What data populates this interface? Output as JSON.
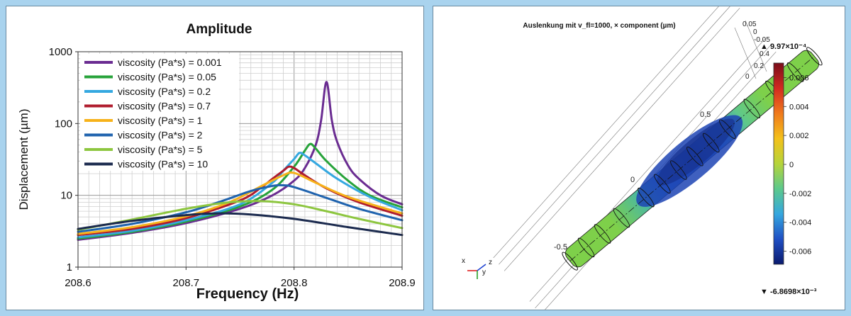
{
  "chart_data": [
    {
      "type": "line",
      "title": "Amplitude",
      "xlabel": "Frequency (Hz)",
      "ylabel": "Displacement (µm)",
      "x_scale": "linear",
      "y_scale": "log",
      "xlim": [
        208.6,
        208.9
      ],
      "ylim": [
        1,
        1000
      ],
      "grid": true,
      "legend_position": "top-left",
      "x_ticks": [
        "208.6",
        "208.7",
        "208.8",
        "208.9"
      ],
      "y_ticks": [
        "1",
        "10",
        "100",
        "1000"
      ],
      "series": [
        {
          "name": "viscosity (Pa*s) = 0.001",
          "color": "#6a2c91",
          "x": [
            208.6,
            208.65,
            208.7,
            208.75,
            208.78,
            208.8,
            208.81,
            208.82,
            208.825,
            208.83,
            208.835,
            208.84,
            208.85,
            208.86,
            208.88,
            208.9
          ],
          "y": [
            2.4,
            3.0,
            4.1,
            6.5,
            10.0,
            16.0,
            24.0,
            50.0,
            110.0,
            380.0,
            110.0,
            55.0,
            26.0,
            17.0,
            10.0,
            7.5
          ]
        },
        {
          "name": "viscosity (Pa*s) = 0.05",
          "color": "#27a33a",
          "x": [
            208.6,
            208.65,
            208.7,
            208.75,
            208.78,
            208.8,
            208.81,
            208.815,
            208.82,
            208.83,
            208.85,
            208.87,
            208.9
          ],
          "y": [
            2.5,
            3.1,
            4.3,
            7.0,
            12.0,
            25.0,
            42.0,
            52.0,
            45.0,
            30.0,
            16.0,
            10.0,
            6.8
          ]
        },
        {
          "name": "viscosity (Pa*s) = 0.2",
          "color": "#35a8e0",
          "x": [
            208.6,
            208.65,
            208.7,
            208.75,
            208.78,
            208.79,
            208.8,
            208.805,
            208.81,
            208.82,
            208.84,
            208.87,
            208.9
          ],
          "y": [
            2.6,
            3.2,
            4.5,
            7.5,
            15.0,
            22.0,
            32.0,
            39.0,
            36.0,
            28.0,
            17.0,
            9.5,
            6.2
          ]
        },
        {
          "name": "viscosity (Pa*s) = 0.7",
          "color": "#b01c2e",
          "x": [
            208.6,
            208.65,
            208.7,
            208.75,
            208.77,
            208.78,
            208.79,
            208.795,
            208.8,
            208.81,
            208.83,
            208.86,
            208.9
          ],
          "y": [
            2.8,
            3.4,
            4.8,
            8.5,
            13.0,
            17.0,
            22.0,
            25.0,
            24.0,
            19.0,
            12.5,
            8.0,
            5.2
          ]
        },
        {
          "name": "viscosity (Pa*s) = 1",
          "color": "#f7b21a",
          "x": [
            208.6,
            208.65,
            208.7,
            208.74,
            208.77,
            208.79,
            208.8,
            208.82,
            208.85,
            208.9
          ],
          "y": [
            2.9,
            3.6,
            5.1,
            8.0,
            13.5,
            19.0,
            20.5,
            15.0,
            9.5,
            5.6
          ]
        },
        {
          "name": "viscosity (Pa*s) = 2",
          "color": "#1f63ae",
          "x": [
            208.6,
            208.65,
            208.7,
            208.73,
            208.76,
            208.78,
            208.79,
            208.8,
            208.83,
            208.86,
            208.9
          ],
          "y": [
            3.1,
            4.0,
            5.8,
            8.0,
            11.5,
            13.5,
            13.8,
            13.0,
            9.2,
            6.5,
            4.5
          ]
        },
        {
          "name": "viscosity (Pa*s) = 5",
          "color": "#8dc63f",
          "x": [
            208.6,
            208.65,
            208.7,
            208.74,
            208.77,
            208.8,
            208.83,
            208.86,
            208.9
          ],
          "y": [
            3.3,
            4.6,
            6.5,
            8.0,
            8.3,
            7.5,
            6.0,
            4.7,
            3.5
          ]
        },
        {
          "name": "viscosity (Pa*s) = 10",
          "color": "#1b2a4e",
          "x": [
            208.6,
            208.65,
            208.7,
            208.73,
            208.76,
            208.8,
            208.85,
            208.9
          ],
          "y": [
            3.4,
            4.4,
            5.3,
            5.6,
            5.4,
            4.7,
            3.6,
            2.8
          ]
        }
      ]
    },
    {
      "type": "heatmap",
      "title": "Auslenkung mit v_fl=1000, × component (µm)",
      "colorbar": {
        "max_label": "▲ 9.97×10⁻⁴",
        "min_label": "▼ -6.8698×10⁻³",
        "ticks": [
          "0.006",
          "0.004",
          "0.002",
          "0",
          "-0.002",
          "-0.004",
          "-0.006"
        ],
        "range": [
          -0.0069,
          0.007
        ],
        "colormap": [
          "#0a1a6e",
          "#1f4fc4",
          "#35a7df",
          "#5cc98c",
          "#b6d43a",
          "#f4c11a",
          "#f07a1c",
          "#d22a20",
          "#7a0d1a"
        ]
      },
      "axis_labels": {
        "tube_axis": [
          "-0.5",
          "0",
          "0.5"
        ],
        "corner_axis": [
          "0.05",
          "0",
          "-0.05",
          "0.4",
          "0.2",
          "0"
        ]
      },
      "triad": {
        "x": "x",
        "y": "y",
        "z": "z"
      }
    }
  ]
}
